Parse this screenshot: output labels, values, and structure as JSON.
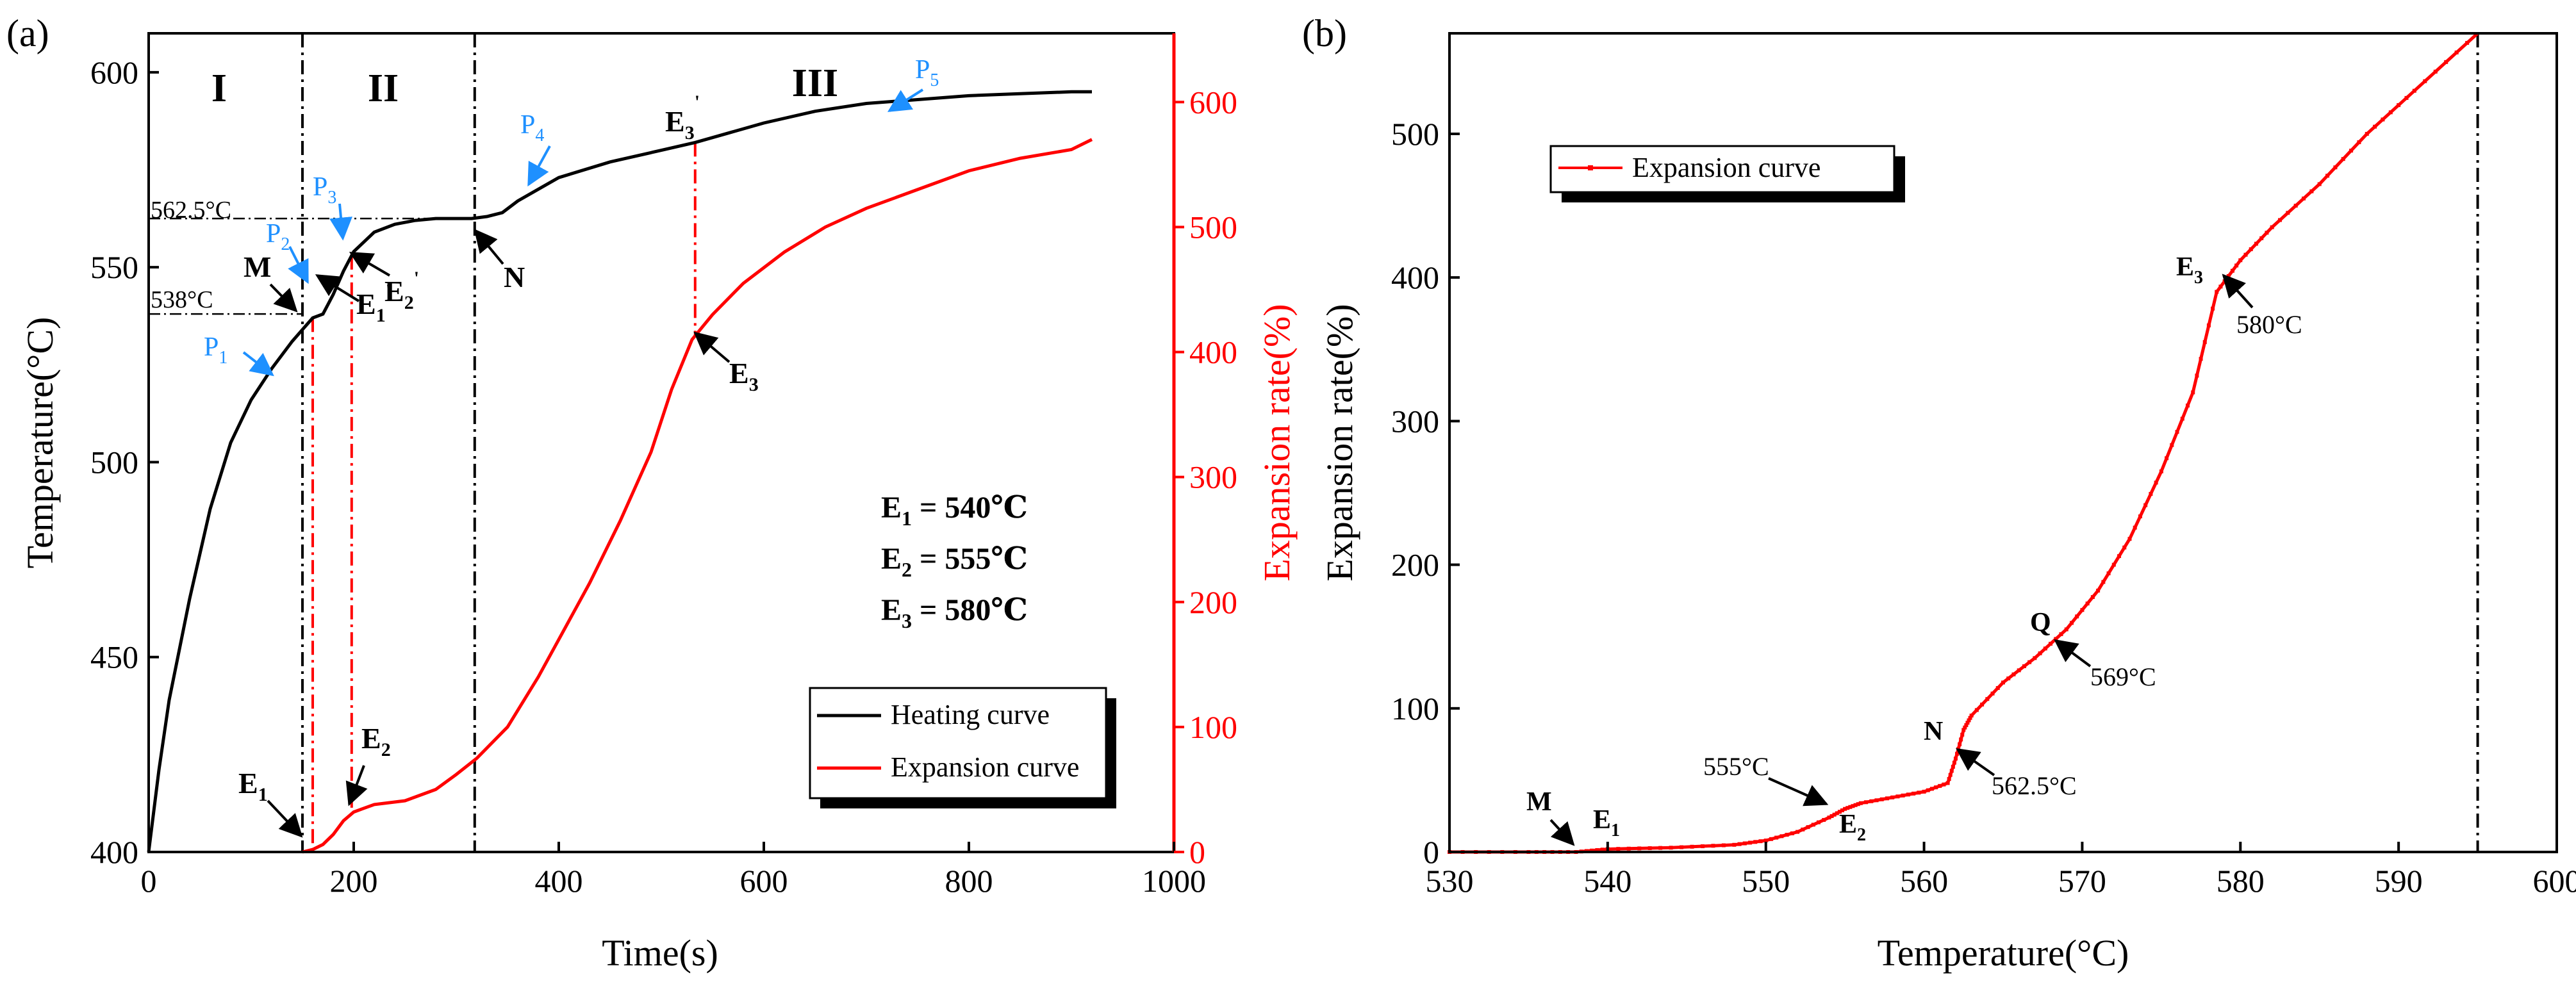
{
  "chart_data": [
    {
      "type": "line",
      "panel": "(a)",
      "xlabel": "Time(s)",
      "ylabel": "Temperature(°C)",
      "y2label": "Expansion rate(%)",
      "xlim": [
        0,
        1000
      ],
      "ylim": [
        400,
        610
      ],
      "y2lim": [
        0,
        655
      ],
      "xticks": [
        0,
        200,
        400,
        600,
        800,
        1000
      ],
      "yticks": [
        400,
        450,
        500,
        550,
        600
      ],
      "y2ticks": [
        0,
        100,
        200,
        300,
        400,
        500,
        600
      ],
      "colors": {
        "heating": "#000000",
        "expansion": "#ff0000",
        "annot": "#1e90ff"
      },
      "series": [
        {
          "name": "Heating curve",
          "axis": "left",
          "color": "#000000",
          "x": [
            0,
            10,
            20,
            40,
            60,
            80,
            100,
            120,
            140,
            150,
            160,
            170,
            180,
            190,
            200,
            220,
            240,
            260,
            280,
            300,
            315,
            330,
            345,
            360,
            380,
            400,
            450,
            500,
            533,
            560,
            600,
            650,
            700,
            750,
            800,
            850,
            900,
            920
          ],
          "values": [
            400,
            421,
            439,
            465,
            488,
            505,
            516,
            524,
            531,
            534,
            537,
            538,
            543,
            549,
            554,
            559,
            561,
            562,
            562.5,
            562.5,
            562.5,
            563,
            564,
            567,
            570,
            573,
            577,
            580,
            582,
            584,
            587,
            590,
            592,
            593,
            594,
            594.5,
            595,
            595
          ]
        },
        {
          "name": "Expansion curve",
          "axis": "right",
          "color": "#ff0000",
          "x": [
            150,
            160,
            170,
            180,
            190,
            200,
            210,
            220,
            250,
            280,
            300,
            320,
            350,
            380,
            400,
            430,
            460,
            490,
            510,
            530,
            550,
            580,
            620,
            660,
            700,
            750,
            800,
            850,
            900,
            920
          ],
          "values": [
            0,
            2,
            6,
            14,
            25,
            32,
            35,
            38,
            41,
            50,
            62,
            75,
            100,
            140,
            170,
            215,
            265,
            320,
            370,
            410,
            430,
            455,
            480,
            500,
            515,
            530,
            545,
            555,
            562,
            570
          ]
        }
      ],
      "legend": [
        "Heating curve",
        "Expansion curve"
      ],
      "legend_position": "bottom-right",
      "regions": [
        "I",
        "II",
        "III"
      ],
      "region_boundaries_s": [
        150,
        318
      ],
      "red_markers_s": [
        160,
        198,
        533
      ],
      "hlines": [
        {
          "label": "562.5°C",
          "y": 562.5
        },
        {
          "label": "538°C",
          "y": 538
        }
      ],
      "labels": {
        "P1": "P",
        "P1_sub": "1",
        "P2": "P",
        "P2_sub": "2",
        "P3": "P",
        "P3_sub": "3",
        "P4": "P",
        "P4_sub": "4",
        "P5": "P",
        "P5_sub": "5",
        "M": "M",
        "N": "N",
        "E1p": "E",
        "E1p_sub": "1",
        "E1p_sup": "'",
        "E2p": "E",
        "E2p_sub": "2",
        "E2p_sup": "'",
        "E3p": "E",
        "E3p_sub": "3",
        "E3p_sup": "'",
        "E1": "E",
        "E1_sub": "1",
        "E2": "E",
        "E2_sub": "2",
        "E3": "E",
        "E3_sub": "3"
      },
      "equations": [
        {
          "E": "E",
          "sub": "1",
          "rest": " = 540℃"
        },
        {
          "E": "E",
          "sub": "2",
          "rest": " = 555℃"
        },
        {
          "E": "E",
          "sub": "3",
          "rest": " = 580℃"
        }
      ]
    },
    {
      "type": "line",
      "panel": "(b)",
      "xlabel": "Temperature(°C)",
      "ylabel": "Expansion rate(%)",
      "xlim": [
        530,
        600
      ],
      "ylim": [
        0,
        570
      ],
      "xticks": [
        530,
        540,
        550,
        560,
        570,
        580,
        590,
        600
      ],
      "yticks": [
        0,
        100,
        200,
        300,
        400,
        500
      ],
      "series": [
        {
          "name": "Expansion curve",
          "color": "#ff0000",
          "x": [
            530,
            535,
            538,
            540,
            544,
            548,
            550,
            552,
            554,
            555,
            556,
            558,
            560,
            561.5,
            562,
            562.5,
            563,
            565,
            567,
            569,
            571,
            573,
            575,
            577,
            578.5,
            580,
            582,
            585,
            588,
            591,
            595
          ],
          "values": [
            0,
            0,
            0,
            2,
            3,
            5,
            8,
            14,
            24,
            30,
            34,
            38,
            42,
            48,
            65,
            85,
            95,
            118,
            135,
            155,
            182,
            218,
            265,
            320,
            390,
            412,
            435,
            465,
            500,
            530,
            570
          ]
        }
      ],
      "legend": [
        "Expansion curve"
      ],
      "legend_position": "top-left",
      "vline_x": 595,
      "labels": {
        "M": "M",
        "E1": "E",
        "E1_sub": "1",
        "E2": "E",
        "E2_sub": "2",
        "E3": "E",
        "E3_sub": "3",
        "N": "N",
        "Q": "Q",
        "t555": "555°C",
        "t5625": "562.5°C",
        "t569": "569°C",
        "t580": "580°C"
      }
    }
  ],
  "panel_labels": [
    "(a)",
    "(b)"
  ]
}
